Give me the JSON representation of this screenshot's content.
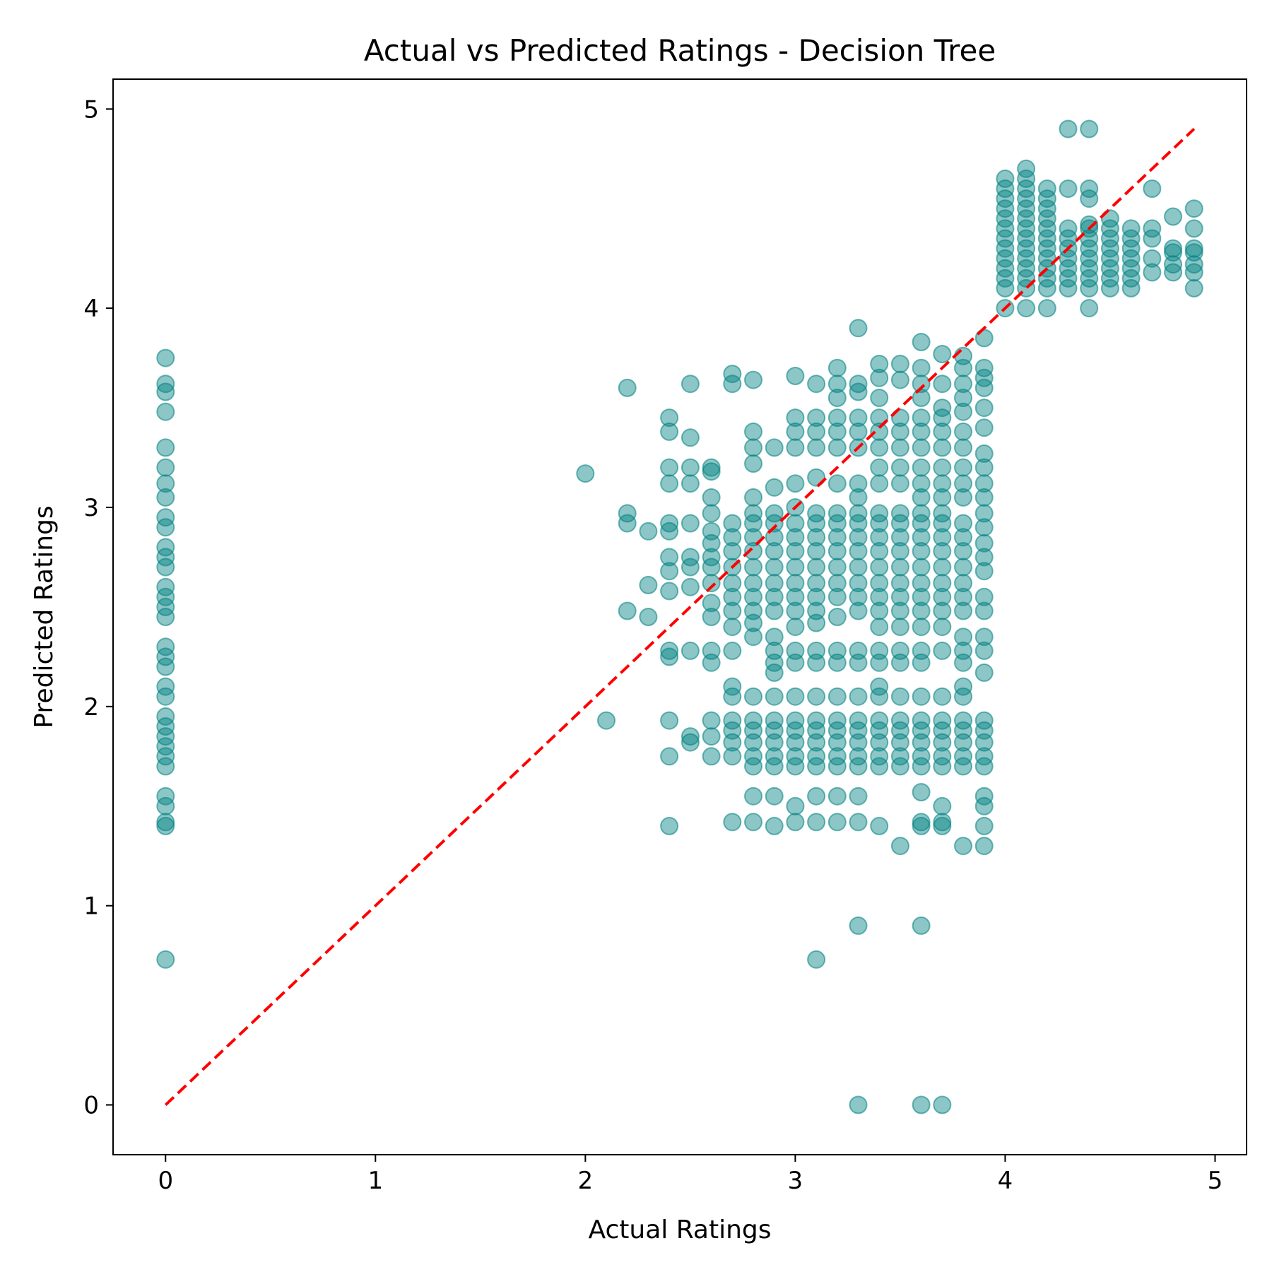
{
  "chart_data": {
    "type": "scatter",
    "title": "Actual vs Predicted Ratings - Decision Tree",
    "xlabel": "Actual Ratings",
    "ylabel": "Predicted Ratings",
    "xlim": [
      -0.25,
      5.15
    ],
    "ylim": [
      -0.25,
      5.15
    ],
    "xticks": [
      0,
      1,
      2,
      3,
      4,
      5
    ],
    "yticks": [
      0,
      1,
      2,
      3,
      4,
      5
    ],
    "grid": false,
    "marker_color": "#008080",
    "marker_alpha": 0.45,
    "reference_line": {
      "x": [
        0,
        4.9
      ],
      "y": [
        0,
        4.9
      ],
      "color": "#ff0000",
      "style": "dashed"
    },
    "columns": [
      {
        "x": 0.0,
        "y": [
          0.73,
          1.4,
          1.42,
          1.5,
          1.55,
          1.7,
          1.75,
          1.8,
          1.85,
          1.9,
          1.95,
          2.05,
          2.1,
          2.2,
          2.25,
          2.3,
          2.45,
          2.5,
          2.55,
          2.6,
          2.7,
          2.75,
          2.8,
          2.9,
          2.95,
          3.05,
          3.12,
          3.2,
          3.3,
          3.48,
          3.58,
          3.62,
          3.75
        ]
      },
      {
        "x": 2.0,
        "y": [
          3.17
        ]
      },
      {
        "x": 2.1,
        "y": [
          1.93
        ]
      },
      {
        "x": 2.2,
        "y": [
          2.48,
          2.92,
          2.97,
          3.6
        ]
      },
      {
        "x": 2.3,
        "y": [
          2.45,
          2.61,
          2.88
        ]
      },
      {
        "x": 2.4,
        "y": [
          1.4,
          1.75,
          1.93,
          2.25,
          2.28,
          2.58,
          2.68,
          2.75,
          2.88,
          2.92,
          3.12,
          3.2,
          3.38,
          3.45
        ]
      },
      {
        "x": 2.5,
        "y": [
          1.82,
          1.85,
          2.28,
          2.6,
          2.7,
          2.75,
          2.92,
          3.12,
          3.2,
          3.35,
          3.62
        ]
      },
      {
        "x": 2.6,
        "y": [
          1.75,
          1.85,
          1.93,
          2.22,
          2.28,
          2.45,
          2.52,
          2.62,
          2.7,
          2.75,
          2.82,
          2.88,
          2.97,
          3.05,
          3.18,
          3.2
        ]
      },
      {
        "x": 2.7,
        "y": [
          1.42,
          1.75,
          1.82,
          1.88,
          1.93,
          2.05,
          2.1,
          2.28,
          2.4,
          2.48,
          2.55,
          2.62,
          2.7,
          2.78,
          2.85,
          2.92,
          3.62,
          3.67
        ]
      },
      {
        "x": 2.8,
        "y": [
          1.42,
          1.55,
          1.7,
          1.75,
          1.82,
          1.88,
          1.93,
          2.05,
          2.35,
          2.42,
          2.48,
          2.55,
          2.62,
          2.7,
          2.78,
          2.85,
          2.92,
          2.97,
          3.05,
          3.22,
          3.3,
          3.38,
          3.64
        ]
      },
      {
        "x": 2.9,
        "y": [
          1.4,
          1.55,
          1.7,
          1.75,
          1.82,
          1.88,
          1.93,
          2.05,
          2.17,
          2.22,
          2.28,
          2.35,
          2.48,
          2.55,
          2.62,
          2.7,
          2.78,
          2.85,
          2.92,
          2.97,
          3.1,
          3.3
        ]
      },
      {
        "x": 3.0,
        "y": [
          1.42,
          1.5,
          1.7,
          1.75,
          1.82,
          1.88,
          1.93,
          2.05,
          2.22,
          2.28,
          2.4,
          2.48,
          2.55,
          2.62,
          2.7,
          2.78,
          2.85,
          2.92,
          3.0,
          3.12,
          3.3,
          3.38,
          3.45,
          3.66
        ]
      },
      {
        "x": 3.1,
        "y": [
          0.73,
          1.42,
          1.55,
          1.7,
          1.75,
          1.82,
          1.88,
          1.93,
          2.05,
          2.22,
          2.28,
          2.42,
          2.48,
          2.55,
          2.62,
          2.7,
          2.78,
          2.85,
          2.92,
          2.97,
          3.15,
          3.3,
          3.38,
          3.45,
          3.62
        ]
      },
      {
        "x": 3.2,
        "y": [
          1.42,
          1.55,
          1.7,
          1.75,
          1.82,
          1.88,
          1.93,
          2.05,
          2.22,
          2.28,
          2.45,
          2.55,
          2.62,
          2.7,
          2.78,
          2.85,
          2.92,
          2.97,
          3.12,
          3.3,
          3.38,
          3.45,
          3.55,
          3.62,
          3.7
        ]
      },
      {
        "x": 3.3,
        "y": [
          0.0,
          0.9,
          1.42,
          1.55,
          1.7,
          1.75,
          1.82,
          1.88,
          1.93,
          2.05,
          2.22,
          2.28,
          2.48,
          2.55,
          2.62,
          2.7,
          2.78,
          2.85,
          2.92,
          2.97,
          3.05,
          3.12,
          3.3,
          3.38,
          3.45,
          3.58,
          3.62,
          3.9
        ]
      },
      {
        "x": 3.4,
        "y": [
          1.4,
          1.7,
          1.75,
          1.82,
          1.88,
          1.93,
          2.05,
          2.1,
          2.22,
          2.28,
          2.4,
          2.48,
          2.55,
          2.62,
          2.7,
          2.78,
          2.85,
          2.92,
          2.97,
          3.12,
          3.2,
          3.3,
          3.38,
          3.45,
          3.55,
          3.65,
          3.72
        ]
      },
      {
        "x": 3.5,
        "y": [
          1.3,
          1.7,
          1.75,
          1.82,
          1.88,
          1.93,
          2.05,
          2.22,
          2.28,
          2.4,
          2.48,
          2.55,
          2.62,
          2.7,
          2.78,
          2.85,
          2.92,
          2.97,
          3.12,
          3.2,
          3.3,
          3.38,
          3.45,
          3.64,
          3.72
        ]
      },
      {
        "x": 3.6,
        "y": [
          0.0,
          0.9,
          1.4,
          1.42,
          1.57,
          1.7,
          1.75,
          1.82,
          1.88,
          1.93,
          2.05,
          2.22,
          2.28,
          2.4,
          2.48,
          2.55,
          2.62,
          2.7,
          2.78,
          2.85,
          2.92,
          2.97,
          3.05,
          3.12,
          3.2,
          3.3,
          3.38,
          3.45,
          3.55,
          3.62,
          3.7,
          3.83
        ]
      },
      {
        "x": 3.7,
        "y": [
          0.0,
          1.4,
          1.42,
          1.5,
          1.7,
          1.75,
          1.82,
          1.88,
          1.93,
          2.05,
          2.28,
          2.4,
          2.48,
          2.55,
          2.62,
          2.7,
          2.78,
          2.85,
          2.92,
          2.97,
          3.05,
          3.12,
          3.2,
          3.3,
          3.38,
          3.45,
          3.5,
          3.62,
          3.77
        ]
      },
      {
        "x": 3.8,
        "y": [
          1.3,
          1.7,
          1.75,
          1.82,
          1.88,
          1.93,
          2.05,
          2.1,
          2.22,
          2.28,
          2.35,
          2.48,
          2.55,
          2.62,
          2.7,
          2.78,
          2.85,
          2.92,
          3.05,
          3.12,
          3.2,
          3.3,
          3.38,
          3.48,
          3.55,
          3.62,
          3.7,
          3.76
        ]
      },
      {
        "x": 3.9,
        "y": [
          1.3,
          1.4,
          1.5,
          1.55,
          1.7,
          1.75,
          1.82,
          1.88,
          1.93,
          2.17,
          2.28,
          2.35,
          2.48,
          2.55,
          2.68,
          2.75,
          2.82,
          2.9,
          2.97,
          3.05,
          3.12,
          3.2,
          3.27,
          3.4,
          3.5,
          3.6,
          3.65,
          3.7,
          3.85
        ]
      },
      {
        "x": 4.0,
        "y": [
          4.0,
          4.1,
          4.15,
          4.2,
          4.25,
          4.3,
          4.35,
          4.4,
          4.45,
          4.5,
          4.55,
          4.6,
          4.65
        ]
      },
      {
        "x": 4.1,
        "y": [
          4.0,
          4.1,
          4.15,
          4.2,
          4.25,
          4.3,
          4.35,
          4.4,
          4.45,
          4.5,
          4.55,
          4.6,
          4.65,
          4.7
        ]
      },
      {
        "x": 4.2,
        "y": [
          4.0,
          4.1,
          4.15,
          4.2,
          4.25,
          4.3,
          4.35,
          4.4,
          4.45,
          4.5,
          4.55,
          4.6
        ]
      },
      {
        "x": 4.3,
        "y": [
          4.1,
          4.15,
          4.2,
          4.25,
          4.3,
          4.35,
          4.4,
          4.6,
          4.9
        ]
      },
      {
        "x": 4.4,
        "y": [
          4.0,
          4.1,
          4.15,
          4.2,
          4.25,
          4.3,
          4.35,
          4.4,
          4.42,
          4.55,
          4.6,
          4.9
        ]
      },
      {
        "x": 4.5,
        "y": [
          4.1,
          4.15,
          4.2,
          4.25,
          4.3,
          4.35,
          4.4,
          4.45
        ]
      },
      {
        "x": 4.6,
        "y": [
          4.1,
          4.15,
          4.2,
          4.25,
          4.3,
          4.35,
          4.4
        ]
      },
      {
        "x": 4.7,
        "y": [
          4.18,
          4.25,
          4.35,
          4.4,
          4.6
        ]
      },
      {
        "x": 4.8,
        "y": [
          4.18,
          4.22,
          4.28,
          4.3,
          4.46
        ]
      },
      {
        "x": 4.9,
        "y": [
          4.1,
          4.18,
          4.22,
          4.28,
          4.3,
          4.4,
          4.5
        ]
      }
    ]
  }
}
